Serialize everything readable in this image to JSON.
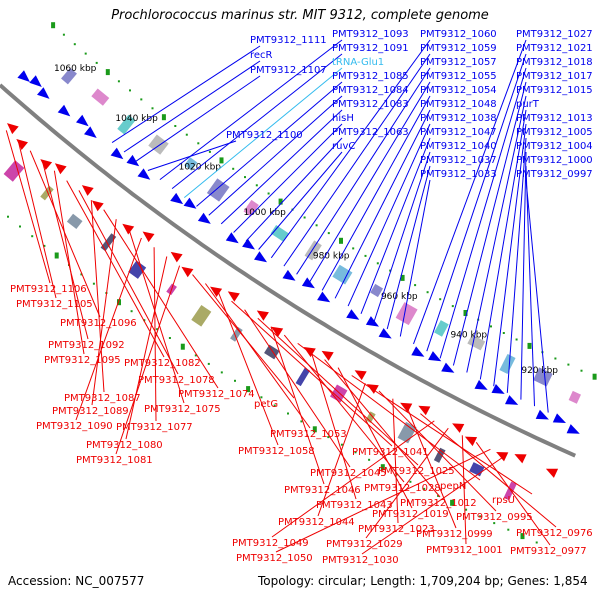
{
  "title": "Prochlorococcus marinus str. MIT 9312, complete genome",
  "footer": {
    "accession": "Accession: NC_007577",
    "summary": "Topology: circular; Length: 1,709,204 bp; Genes: 1,854"
  },
  "colors": {
    "forward_strand": "#0000ee",
    "reverse_strand": "#ee0000",
    "trna": "#33bbee",
    "backbone": "#808080",
    "tick": "#1a9a1a"
  },
  "ruler_labels": [
    "1060 kbp",
    "1040 kbp",
    "1020 kbp",
    "1000 kbp",
    "980 kbp",
    "960 kbp",
    "940 kbp",
    "920 kbp"
  ],
  "forward_labels": [
    "PMT9312_1111",
    "recR",
    "PMT9312_1107",
    "PMT9312_1100",
    "PMT9312_1093",
    "PMT9312_1091",
    "tRNA-Glu1",
    "PMT9312_1085",
    "PMT9312_1084",
    "PMT9312_1083",
    "hisH",
    "PMT9312_1063",
    "ruvC",
    "PMT9312_1060",
    "PMT9312_1059",
    "PMT9312_1057",
    "PMT9312_1055",
    "PMT9312_1054",
    "PMT9312_1048",
    "PMT9312_1038",
    "PMT9312_1047",
    "PMT9312_1040",
    "PMT9312_1037",
    "PMT9312_1033",
    "PMT9312_1027",
    "PMT9312_1021",
    "PMT9312_1018",
    "PMT9312_1017",
    "PMT9312_1015",
    "purT",
    "PMT9312_1013",
    "PMT9312_1005",
    "PMT9312_1004",
    "PMT9312_1000",
    "PMT9312_0997"
  ],
  "reverse_labels": [
    "PMT9312_1106",
    "PMT9312_1105",
    "PMT9312_1096",
    "PMT9312_1092",
    "PMT9312_1095",
    "PMT9312_1082",
    "PMT9312_1078",
    "PMT9312_1087",
    "PMT9312_1074",
    "PMT9312_1089",
    "PMT9312_1075",
    "PMT9312_1090",
    "PMT9312_1077",
    "PMT9312_1080",
    "PMT9312_1081",
    "petG",
    "PMT9312_1053",
    "PMT9312_1058",
    "PMT9312_1041",
    "PMT9312_1045",
    "PMT9312_1025",
    "PMT9312_1046",
    "PMT9312_1028",
    "pepN",
    "PMT9312_1043",
    "PMT9312_1012",
    "PMT9312_1019",
    "rpsU",
    "PMT9312_1044",
    "PMT9312_0995",
    "PMT9312_1023",
    "PMT9312_0999",
    "PMT9312_0976",
    "PMT9312_1049",
    "PMT9312_1029",
    "PMT9312_1001",
    "PMT9312_0977",
    "PMT9312_1050",
    "PMT9312_1030"
  ]
}
